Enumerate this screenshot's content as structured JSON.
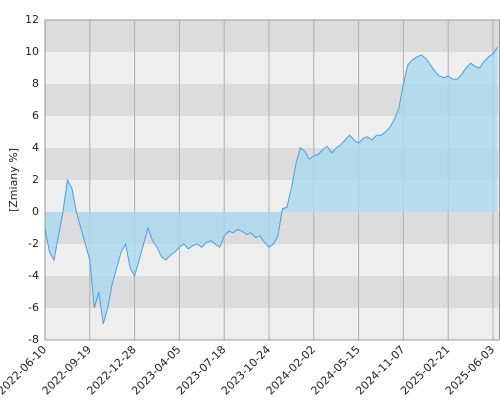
{
  "chart_data": {
    "type": "area",
    "y_label": "[Zmiany %]",
    "categories": [
      "2022-06-10",
      null,
      null,
      null,
      null,
      null,
      null,
      null,
      null,
      null,
      "2022-09-19",
      null,
      null,
      null,
      null,
      null,
      null,
      null,
      null,
      null,
      "2022-12-28",
      null,
      null,
      null,
      null,
      null,
      null,
      null,
      null,
      null,
      "2023-04-05",
      null,
      null,
      null,
      null,
      null,
      null,
      null,
      null,
      null,
      "2023-07-18",
      null,
      null,
      null,
      null,
      null,
      null,
      null,
      null,
      null,
      "2023-10-24",
      null,
      null,
      null,
      null,
      null,
      null,
      null,
      null,
      null,
      "2024-02-02",
      null,
      null,
      null,
      null,
      null,
      null,
      null,
      null,
      null,
      "2024-05-15",
      null,
      null,
      null,
      null,
      null,
      null,
      null,
      null,
      null,
      "2024-11-07",
      null,
      null,
      null,
      null,
      null,
      null,
      null,
      null,
      null,
      "2025-02-21",
      null,
      null,
      null,
      null,
      null,
      null,
      null,
      null,
      null,
      "2025-06-03",
      null
    ],
    "values": [
      -1,
      -2.5,
      -3,
      -1.5,
      0,
      2,
      1.5,
      0,
      -1,
      -2,
      -3,
      -6,
      -5,
      -7,
      -6,
      -4.5,
      -3.5,
      -2.5,
      -2,
      -3.5,
      -4,
      -3,
      -2,
      -1,
      -1.8,
      -2.2,
      -2.8,
      -3,
      -2.7,
      -2.5,
      -2.2,
      -2,
      -2.3,
      -2.1,
      -2,
      -2.2,
      -1.9,
      -1.8,
      -2,
      -2.2,
      -1.5,
      -1.2,
      -1.3,
      -1.1,
      -1.2,
      -1.4,
      -1.3,
      -1.6,
      -1.5,
      -1.9,
      -2.2,
      -2,
      -1.5,
      0.2,
      0.3,
      1.5,
      3,
      4,
      3.8,
      3.3,
      3.5,
      3.6,
      3.9,
      4.1,
      3.7,
      4,
      4.2,
      4.5,
      4.8,
      4.5,
      4.3,
      4.6,
      4.7,
      4.5,
      4.8,
      4.8,
      5,
      5.3,
      5.8,
      6.5,
      8,
      9.2,
      9.5,
      9.7,
      9.8,
      9.6,
      9.2,
      8.8,
      8.5,
      8.4,
      8.5,
      8.3,
      8.3,
      8.6,
      9,
      9.3,
      9.1,
      9,
      9.4,
      9.7,
      9.9,
      10.3
    ],
    "color": "#4a9ee8",
    "fill": "#a9d8ef",
    "band_colors": [
      "#dcdcdc",
      "#eeeeee"
    ],
    "ylim": [
      -8,
      12
    ],
    "yticks": [
      -8,
      -6,
      -4,
      -2,
      0,
      2,
      4,
      6,
      8,
      10,
      12
    ],
    "grid": true
  }
}
